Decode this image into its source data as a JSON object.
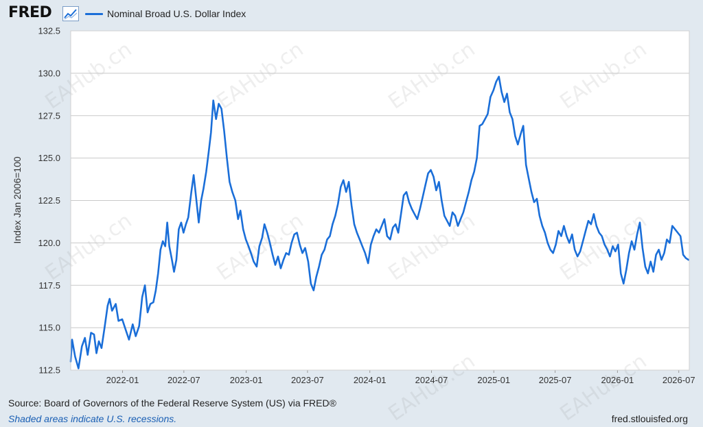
{
  "header": {
    "logo_text": "FRED",
    "graph_icon": "line-chart-icon",
    "legend_label": "Nominal Broad U.S. Dollar Index"
  },
  "colors": {
    "series": "#1a6ed8",
    "plot_bg": "#ffffff",
    "page_bg": "#e1e9f0",
    "grid": "#c8c8c8"
  },
  "footer": {
    "source": "Source: Board of Governors of the Federal Reserve System (US) via FRED®",
    "recession_note": "Shaded areas indicate U.S. recessions.",
    "site": "fred.stlouisfed.org"
  },
  "watermark_text": "EAHub.cn",
  "chart_data": {
    "type": "line",
    "title": "",
    "xlabel": "",
    "ylabel": "Index Jan 2006=100",
    "ylim": [
      112.5,
      132.5
    ],
    "yticks": [
      112.5,
      115.0,
      117.5,
      120.0,
      122.5,
      125.0,
      127.5,
      130.0,
      132.5
    ],
    "ytick_labels": [
      "112.5",
      "115.0",
      "117.5",
      "120.0",
      "122.5",
      "125.0",
      "127.5",
      "130.0",
      "132.5"
    ],
    "xlim": [
      "2021-08-01",
      "2026-08-01"
    ],
    "xticks": [
      "2022-01-01",
      "2022-07-01",
      "2023-01-01",
      "2023-07-01",
      "2024-01-01",
      "2024-07-01",
      "2025-01-01",
      "2025-07-01",
      "2026-01-01",
      "2026-07-01"
    ],
    "xtick_labels": [
      "2022-01",
      "2022-07",
      "2023-01",
      "2023-07",
      "2024-01",
      "2024-07",
      "2025-01",
      "2025-07",
      "2026-01",
      "2026-07"
    ],
    "grid": true,
    "legend_position": "top",
    "series": [
      {
        "name": "Nominal Broad U.S. Dollar Index",
        "points": [
          [
            "2021-08-01",
            113.0
          ],
          [
            "2021-08-05",
            114.3
          ],
          [
            "2021-08-14",
            113.3
          ],
          [
            "2021-08-24",
            112.6
          ],
          [
            "2021-09-03",
            113.9
          ],
          [
            "2021-09-12",
            114.4
          ],
          [
            "2021-09-20",
            113.4
          ],
          [
            "2021-09-30",
            114.7
          ],
          [
            "2021-10-09",
            114.6
          ],
          [
            "2021-10-16",
            113.5
          ],
          [
            "2021-10-23",
            114.2
          ],
          [
            "2021-10-31",
            113.8
          ],
          [
            "2021-11-09",
            115.0
          ],
          [
            "2021-11-18",
            116.3
          ],
          [
            "2021-11-24",
            116.7
          ],
          [
            "2021-12-01",
            116.0
          ],
          [
            "2021-12-12",
            116.4
          ],
          [
            "2021-12-20",
            115.4
          ],
          [
            "2021-12-31",
            115.5
          ],
          [
            "2022-01-10",
            114.9
          ],
          [
            "2022-01-20",
            114.3
          ],
          [
            "2022-01-31",
            115.2
          ],
          [
            "2022-02-09",
            114.5
          ],
          [
            "2022-02-19",
            115.1
          ],
          [
            "2022-02-28",
            116.8
          ],
          [
            "2022-03-08",
            117.5
          ],
          [
            "2022-03-16",
            115.9
          ],
          [
            "2022-03-24",
            116.4
          ],
          [
            "2022-04-02",
            116.5
          ],
          [
            "2022-04-09",
            117.2
          ],
          [
            "2022-04-16",
            118.2
          ],
          [
            "2022-04-23",
            119.6
          ],
          [
            "2022-04-30",
            120.1
          ],
          [
            "2022-05-07",
            119.8
          ],
          [
            "2022-05-13",
            121.2
          ],
          [
            "2022-05-19",
            119.8
          ],
          [
            "2022-05-26",
            119.1
          ],
          [
            "2022-06-02",
            118.3
          ],
          [
            "2022-06-09",
            119.0
          ],
          [
            "2022-06-16",
            120.8
          ],
          [
            "2022-06-23",
            121.2
          ],
          [
            "2022-06-30",
            120.6
          ],
          [
            "2022-07-07",
            121.1
          ],
          [
            "2022-07-14",
            121.5
          ],
          [
            "2022-07-23",
            123.0
          ],
          [
            "2022-07-30",
            124.0
          ],
          [
            "2022-08-07",
            122.5
          ],
          [
            "2022-08-14",
            121.2
          ],
          [
            "2022-08-21",
            122.5
          ],
          [
            "2022-08-28",
            123.2
          ],
          [
            "2022-09-05",
            124.2
          ],
          [
            "2022-09-12",
            125.3
          ],
          [
            "2022-09-19",
            126.5
          ],
          [
            "2022-09-26",
            128.4
          ],
          [
            "2022-10-04",
            127.3
          ],
          [
            "2022-10-12",
            128.2
          ],
          [
            "2022-10-20",
            127.9
          ],
          [
            "2022-10-28",
            126.6
          ],
          [
            "2022-11-05",
            125.0
          ],
          [
            "2022-11-13",
            123.6
          ],
          [
            "2022-11-21",
            123.0
          ],
          [
            "2022-11-30",
            122.5
          ],
          [
            "2022-12-08",
            121.4
          ],
          [
            "2022-12-15",
            121.9
          ],
          [
            "2022-12-23",
            120.8
          ],
          [
            "2022-12-31",
            120.2
          ],
          [
            "2023-01-08",
            119.8
          ],
          [
            "2023-01-15",
            119.4
          ],
          [
            "2023-01-23",
            118.9
          ],
          [
            "2023-02-01",
            118.6
          ],
          [
            "2023-02-09",
            119.8
          ],
          [
            "2023-02-17",
            120.3
          ],
          [
            "2023-02-24",
            121.1
          ],
          [
            "2023-03-04",
            120.6
          ],
          [
            "2023-03-12",
            120.0
          ],
          [
            "2023-03-20",
            119.3
          ],
          [
            "2023-03-28",
            118.7
          ],
          [
            "2023-04-05",
            119.2
          ],
          [
            "2023-04-13",
            118.5
          ],
          [
            "2023-04-21",
            119.0
          ],
          [
            "2023-04-29",
            119.4
          ],
          [
            "2023-05-07",
            119.3
          ],
          [
            "2023-05-15",
            120.0
          ],
          [
            "2023-05-23",
            120.5
          ],
          [
            "2023-05-31",
            120.6
          ],
          [
            "2023-06-08",
            119.9
          ],
          [
            "2023-06-16",
            119.4
          ],
          [
            "2023-06-24",
            119.7
          ],
          [
            "2023-07-03",
            118.9
          ],
          [
            "2023-07-11",
            117.6
          ],
          [
            "2023-07-19",
            117.2
          ],
          [
            "2023-07-27",
            118.0
          ],
          [
            "2023-08-04",
            118.6
          ],
          [
            "2023-08-12",
            119.3
          ],
          [
            "2023-08-20",
            119.6
          ],
          [
            "2023-08-28",
            120.2
          ],
          [
            "2023-09-05",
            120.4
          ],
          [
            "2023-09-13",
            121.1
          ],
          [
            "2023-09-21",
            121.6
          ],
          [
            "2023-09-29",
            122.3
          ],
          [
            "2023-10-07",
            123.3
          ],
          [
            "2023-10-15",
            123.7
          ],
          [
            "2023-10-23",
            123.0
          ],
          [
            "2023-10-31",
            123.6
          ],
          [
            "2023-11-08",
            122.2
          ],
          [
            "2023-11-16",
            121.1
          ],
          [
            "2023-11-24",
            120.6
          ],
          [
            "2023-12-02",
            120.2
          ],
          [
            "2023-12-10",
            119.8
          ],
          [
            "2023-12-18",
            119.4
          ],
          [
            "2023-12-27",
            118.8
          ],
          [
            "2024-01-04",
            119.9
          ],
          [
            "2024-01-12",
            120.4
          ],
          [
            "2024-01-20",
            120.8
          ],
          [
            "2024-01-28",
            120.6
          ],
          [
            "2024-02-05",
            121.0
          ],
          [
            "2024-02-13",
            121.4
          ],
          [
            "2024-02-21",
            120.4
          ],
          [
            "2024-03-01",
            120.2
          ],
          [
            "2024-03-09",
            120.9
          ],
          [
            "2024-03-17",
            121.1
          ],
          [
            "2024-03-25",
            120.6
          ],
          [
            "2024-04-02",
            121.7
          ],
          [
            "2024-04-10",
            122.8
          ],
          [
            "2024-04-18",
            123.0
          ],
          [
            "2024-04-26",
            122.4
          ],
          [
            "2024-05-04",
            122.0
          ],
          [
            "2024-05-12",
            121.7
          ],
          [
            "2024-05-20",
            121.4
          ],
          [
            "2024-05-28",
            122.0
          ],
          [
            "2024-06-05",
            122.7
          ],
          [
            "2024-06-13",
            123.4
          ],
          [
            "2024-06-21",
            124.1
          ],
          [
            "2024-06-29",
            124.3
          ],
          [
            "2024-07-07",
            123.9
          ],
          [
            "2024-07-15",
            123.1
          ],
          [
            "2024-07-23",
            123.6
          ],
          [
            "2024-07-31",
            122.5
          ],
          [
            "2024-08-08",
            121.6
          ],
          [
            "2024-08-16",
            121.3
          ],
          [
            "2024-08-24",
            121.0
          ],
          [
            "2024-09-01",
            121.8
          ],
          [
            "2024-09-09",
            121.6
          ],
          [
            "2024-09-17",
            121.0
          ],
          [
            "2024-09-25",
            121.4
          ],
          [
            "2024-10-03",
            121.8
          ],
          [
            "2024-10-11",
            122.4
          ],
          [
            "2024-10-19",
            123.0
          ],
          [
            "2024-10-27",
            123.7
          ],
          [
            "2024-11-04",
            124.2
          ],
          [
            "2024-11-12",
            125.0
          ],
          [
            "2024-11-20",
            126.9
          ],
          [
            "2024-11-28",
            127.0
          ],
          [
            "2024-12-06",
            127.3
          ],
          [
            "2024-12-14",
            127.6
          ],
          [
            "2024-12-22",
            128.6
          ],
          [
            "2024-12-31",
            129.0
          ],
          [
            "2025-01-08",
            129.5
          ],
          [
            "2025-01-16",
            129.8
          ],
          [
            "2025-01-24",
            128.9
          ],
          [
            "2025-02-01",
            128.3
          ],
          [
            "2025-02-09",
            128.8
          ],
          [
            "2025-02-17",
            127.7
          ],
          [
            "2025-02-25",
            127.3
          ],
          [
            "2025-03-05",
            126.3
          ],
          [
            "2025-03-13",
            125.8
          ],
          [
            "2025-03-21",
            126.4
          ],
          [
            "2025-03-29",
            126.9
          ],
          [
            "2025-04-06",
            124.6
          ],
          [
            "2025-04-14",
            123.8
          ],
          [
            "2025-04-22",
            123.0
          ],
          [
            "2025-04-30",
            122.4
          ],
          [
            "2025-05-08",
            122.6
          ],
          [
            "2025-05-16",
            121.6
          ],
          [
            "2025-05-24",
            121.0
          ],
          [
            "2025-06-01",
            120.6
          ],
          [
            "2025-06-09",
            120.0
          ],
          [
            "2025-06-17",
            119.6
          ],
          [
            "2025-06-25",
            119.4
          ],
          [
            "2025-07-03",
            119.9
          ],
          [
            "2025-07-11",
            120.7
          ],
          [
            "2025-07-19",
            120.4
          ],
          [
            "2025-07-27",
            121.0
          ],
          [
            "2025-08-04",
            120.4
          ],
          [
            "2025-08-12",
            120.0
          ],
          [
            "2025-08-20",
            120.5
          ],
          [
            "2025-08-28",
            119.6
          ],
          [
            "2025-09-05",
            119.2
          ],
          [
            "2025-09-13",
            119.5
          ],
          [
            "2025-09-21",
            120.1
          ],
          [
            "2025-09-29",
            120.7
          ],
          [
            "2025-10-07",
            121.3
          ],
          [
            "2025-10-15",
            121.1
          ],
          [
            "2025-10-23",
            121.7
          ],
          [
            "2025-10-31",
            121.0
          ],
          [
            "2025-11-08",
            120.6
          ],
          [
            "2025-11-16",
            120.4
          ],
          [
            "2025-11-24",
            119.9
          ],
          [
            "2025-12-02",
            119.6
          ],
          [
            "2025-12-10",
            119.2
          ],
          [
            "2025-12-18",
            119.8
          ],
          [
            "2025-12-26",
            119.5
          ],
          [
            "2026-01-03",
            119.9
          ],
          [
            "2026-01-11",
            118.2
          ],
          [
            "2026-01-19",
            117.6
          ],
          [
            "2026-01-27",
            118.4
          ],
          [
            "2026-02-04",
            119.4
          ],
          [
            "2026-02-12",
            120.1
          ],
          [
            "2026-02-20",
            119.6
          ],
          [
            "2026-02-28",
            120.5
          ],
          [
            "2026-03-08",
            121.2
          ],
          [
            "2026-03-16",
            119.7
          ],
          [
            "2026-03-24",
            118.6
          ],
          [
            "2026-04-01",
            118.2
          ],
          [
            "2026-04-09",
            118.9
          ],
          [
            "2026-04-17",
            118.3
          ],
          [
            "2026-04-25",
            119.3
          ],
          [
            "2026-05-03",
            119.6
          ],
          [
            "2026-05-11",
            119.0
          ],
          [
            "2026-05-19",
            119.4
          ],
          [
            "2026-05-27",
            120.2
          ],
          [
            "2026-06-04",
            120.0
          ],
          [
            "2026-06-12",
            121.0
          ],
          [
            "2026-06-20",
            120.8
          ],
          [
            "2026-06-28",
            120.6
          ],
          [
            "2026-07-06",
            120.4
          ],
          [
            "2026-07-14",
            119.3
          ],
          [
            "2026-07-22",
            119.1
          ],
          [
            "2026-07-30",
            119.0
          ]
        ]
      }
    ]
  }
}
